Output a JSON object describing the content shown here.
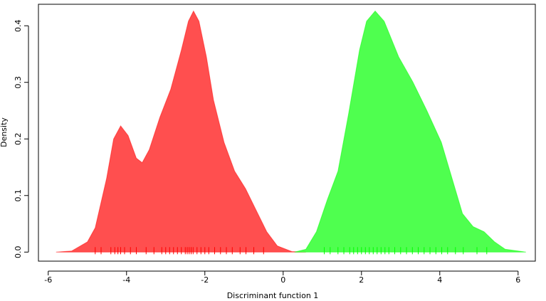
{
  "chart_data": {
    "type": "area",
    "xlabel": "Discriminant function 1",
    "ylabel": "Density",
    "xlim": [
      -6.25,
      6.44
    ],
    "ylim": [
      -0.016,
      0.438
    ],
    "xticks": [
      -6,
      -4,
      -2,
      0,
      2,
      4,
      6
    ],
    "yticks": [
      {
        "value": 0,
        "label": "0.0"
      },
      0.1,
      0.2,
      0.3,
      0.4
    ],
    "series": [
      {
        "color": "#ff4f4f",
        "rug_color": "#ff0000",
        "x": [
          -5.8,
          -5.4,
          -5.0,
          -4.8,
          -4.51,
          -4.33,
          -4.15,
          -3.96,
          -3.75,
          -3.6,
          -3.42,
          -3.15,
          -2.87,
          -2.6,
          -2.42,
          -2.29,
          -2.15,
          -1.96,
          -1.78,
          -1.51,
          -1.24,
          -0.96,
          -0.69,
          -0.42,
          -0.15,
          0.22,
          0.58
        ],
        "values": [
          0,
          0.002,
          0.018,
          0.043,
          0.13,
          0.2,
          0.223,
          0.206,
          0.166,
          0.158,
          0.181,
          0.238,
          0.288,
          0.357,
          0.408,
          0.426,
          0.408,
          0.345,
          0.269,
          0.194,
          0.143,
          0.112,
          0.074,
          0.036,
          0.011,
          0.001,
          0
        ],
        "rug": [
          -4.8,
          -4.65,
          -4.4,
          -4.3,
          -4.22,
          -4.15,
          -4.05,
          -3.9,
          -3.75,
          -3.5,
          -3.3,
          -3.1,
          -3.0,
          -2.9,
          -2.8,
          -2.7,
          -2.6,
          -2.5,
          -2.45,
          -2.4,
          -2.35,
          -2.3,
          -2.2,
          -2.1,
          -2.0,
          -1.9,
          -1.75,
          -1.6,
          -1.45,
          -1.3,
          -1.1,
          -0.95,
          -0.75,
          -0.5
        ]
      },
      {
        "color": "#4fff4f",
        "rug_color": "#00ff00",
        "x": [
          0.29,
          0.58,
          0.85,
          1.13,
          1.4,
          1.67,
          1.95,
          2.13,
          2.35,
          2.58,
          2.95,
          3.31,
          3.67,
          4.04,
          4.31,
          4.58,
          4.85,
          5.13,
          5.4,
          5.67,
          6.2
        ],
        "values": [
          0,
          0.005,
          0.036,
          0.093,
          0.143,
          0.244,
          0.357,
          0.408,
          0.426,
          0.408,
          0.345,
          0.301,
          0.25,
          0.194,
          0.131,
          0.068,
          0.045,
          0.036,
          0.018,
          0.005,
          0
        ],
        "rug": [
          1.05,
          1.2,
          1.4,
          1.55,
          1.7,
          1.8,
          1.9,
          2.0,
          2.1,
          2.2,
          2.3,
          2.4,
          2.5,
          2.6,
          2.7,
          2.85,
          3.0,
          3.15,
          3.3,
          3.45,
          3.6,
          3.75,
          3.9,
          4.05,
          4.2,
          4.4,
          4.6,
          4.95,
          5.2
        ]
      }
    ]
  }
}
